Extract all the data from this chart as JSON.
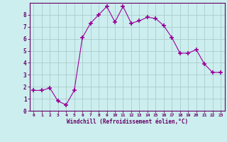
{
  "x": [
    0,
    1,
    2,
    3,
    4,
    5,
    6,
    7,
    8,
    9,
    10,
    11,
    12,
    13,
    14,
    15,
    16,
    17,
    18,
    19,
    20,
    21,
    22,
    23
  ],
  "y": [
    1.7,
    1.7,
    1.9,
    0.8,
    0.5,
    1.7,
    6.1,
    7.3,
    8.0,
    8.7,
    7.4,
    8.7,
    7.3,
    7.5,
    7.8,
    7.7,
    7.1,
    6.1,
    4.8,
    4.8,
    5.1,
    3.9,
    3.2,
    3.2
  ],
  "line_color": "#990099",
  "marker": "+",
  "marker_size": 4,
  "bg_color": "#cceeee",
  "grid_color": "#aacccc",
  "xlabel": "Windchill (Refroidissement éolien,°C)",
  "xlabel_color": "#660066",
  "tick_color": "#660066",
  "ylabel_ticks": [
    0,
    1,
    2,
    3,
    4,
    5,
    6,
    7,
    8
  ],
  "xlim": [
    -0.5,
    23.5
  ],
  "ylim": [
    0,
    9.0
  ],
  "figsize": [
    3.2,
    2.0
  ],
  "dpi": 100
}
